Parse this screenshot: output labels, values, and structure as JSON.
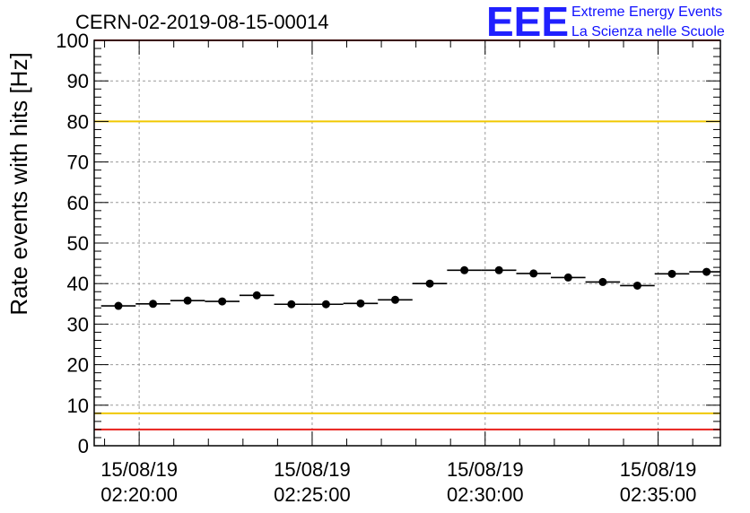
{
  "chart_data": {
    "type": "scatter",
    "title": "CERN-02-2019-08-15-00014",
    "ylabel": "Rate events with hits [Hz]",
    "xlabel": "",
    "ylim": [
      0,
      100
    ],
    "xlim_minutes_after_0220": [
      -1.3,
      16.8
    ],
    "y_ticks": [
      "0",
      "10",
      "20",
      "30",
      "40",
      "50",
      "60",
      "70",
      "80",
      "90",
      "100"
    ],
    "x_ticks": [
      {
        "minute": 0,
        "date": "15/08/19",
        "time": "02:20:00"
      },
      {
        "minute": 5,
        "date": "15/08/19",
        "time": "02:25:00"
      },
      {
        "minute": 10,
        "date": "15/08/19",
        "time": "02:30:00"
      },
      {
        "minute": 15,
        "date": "15/08/19",
        "time": "02:35:00"
      }
    ],
    "reference_lines": [
      {
        "y": 100,
        "color": "#e8201c"
      },
      {
        "y": 80,
        "color": "#f0c800"
      },
      {
        "y": 8,
        "color": "#f0c800"
      },
      {
        "y": 4,
        "color": "#e8201c"
      }
    ],
    "grid": true,
    "series": [
      {
        "marker_color": "#000000",
        "bin_width_minutes": 1.0,
        "points": [
          {
            "minute": -0.6,
            "y": 34.5
          },
          {
            "minute": 0.4,
            "y": 35.0
          },
          {
            "minute": 1.4,
            "y": 35.8
          },
          {
            "minute": 2.4,
            "y": 35.6
          },
          {
            "minute": 3.4,
            "y": 37.1
          },
          {
            "minute": 4.4,
            "y": 34.9
          },
          {
            "minute": 5.4,
            "y": 34.9
          },
          {
            "minute": 6.4,
            "y": 35.1
          },
          {
            "minute": 7.4,
            "y": 36.0
          },
          {
            "minute": 8.4,
            "y": 40.0
          },
          {
            "minute": 9.4,
            "y": 43.3
          },
          {
            "minute": 10.4,
            "y": 43.3
          },
          {
            "minute": 11.4,
            "y": 42.5
          },
          {
            "minute": 12.4,
            "y": 41.5
          },
          {
            "minute": 13.4,
            "y": 40.4
          },
          {
            "minute": 14.4,
            "y": 39.5
          },
          {
            "minute": 15.4,
            "y": 42.4
          },
          {
            "minute": 16.4,
            "y": 42.9
          }
        ]
      }
    ]
  },
  "logo": {
    "mark": "EEE",
    "line1": "Extreme Energy Events",
    "line2": "La Scienza nelle Scuole"
  }
}
